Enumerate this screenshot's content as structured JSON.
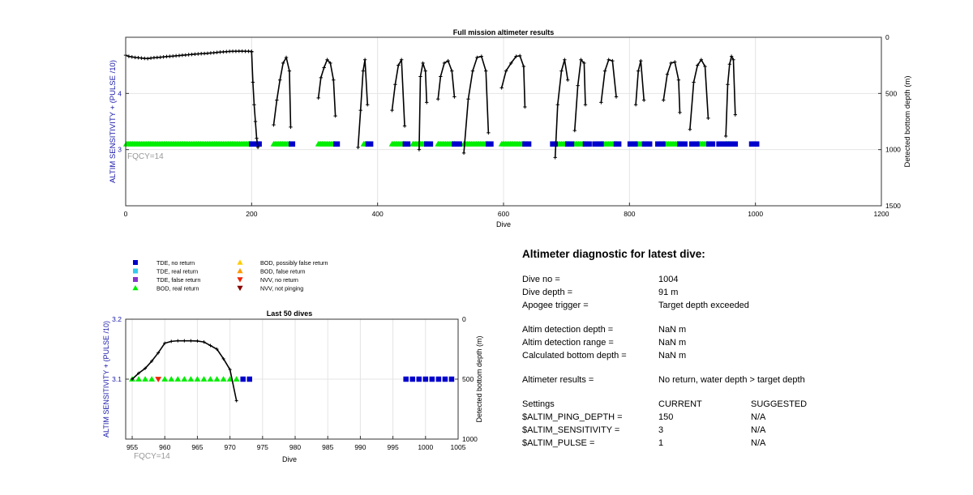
{
  "top_chart": {
    "title": "Full mission altimeter results",
    "xlabel": "Dive",
    "ylabel_left": "ALTIM SENSITIVITY + (PULSE /10)",
    "ylabel_right": "Detected bottom depth (m)",
    "xticks": [
      "0",
      "200",
      "400",
      "600",
      "800",
      "1000",
      "1200"
    ],
    "yticks_left": [
      "3",
      "4"
    ],
    "yticks_right": [
      "0",
      "500",
      "1000",
      "1500"
    ],
    "annotation": "FQCY=14",
    "colors": {
      "green": "#00ee00",
      "blue": "#0000cc",
      "line": "#000000"
    }
  },
  "legend": {
    "items": [
      {
        "label": "TDE, no return",
        "shape": "square",
        "color": "#0000cc"
      },
      {
        "label": "TDE, real return",
        "shape": "square",
        "color": "#33ccee"
      },
      {
        "label": "TDE, false return",
        "shape": "square",
        "color": "#8833cc"
      },
      {
        "label": "BOD, real return",
        "shape": "triangle-up",
        "color": "#00ee00"
      },
      {
        "label": "BOD, possibly false return",
        "shape": "triangle-up",
        "color": "#ffcc00"
      },
      {
        "label": "BOD, false return",
        "shape": "triangle-up",
        "color": "#ff9900"
      },
      {
        "label": "NVV, no return",
        "shape": "triangle-down",
        "color": "#ee2200"
      },
      {
        "label": "NVV, not pinging",
        "shape": "triangle-down",
        "color": "#880000"
      }
    ]
  },
  "bottom_chart": {
    "title": "Last 50 dives",
    "xlabel": "Dive",
    "ylabel_left": "ALTIM SENSITIVITY + (PULSE /10)",
    "ylabel_right": "Detected bottom depth (m)",
    "xticks": [
      "955",
      "960",
      "965",
      "970",
      "975",
      "980",
      "985",
      "990",
      "995",
      "1000",
      "1005"
    ],
    "yticks_left": [
      "3.1",
      "3.2"
    ],
    "yticks_right": [
      "0",
      "500",
      "1000"
    ],
    "annotation": "FQCY=14"
  },
  "chart_data": [
    {
      "type": "scatter",
      "title": "Full mission altimeter results",
      "xlabel": "Dive",
      "ylabel": "ALTIM SENSITIVITY + (PULSE /10)",
      "y2label": "Detected bottom depth (m)",
      "xlim": [
        0,
        1200
      ],
      "ylim": [
        2,
        5
      ],
      "y2lim": [
        1500,
        0
      ],
      "grid": true,
      "series": [
        {
          "name": "BOD, real return",
          "marker": "triangle-up",
          "color": "#00ee00",
          "y": 3.1,
          "ranges": [
            [
              1,
              200
            ],
            [
              235,
              262
            ],
            [
              306,
              333
            ],
            [
              378,
              384
            ],
            [
              423,
              443
            ],
            [
              456,
              478
            ],
            [
              496,
              522
            ],
            [
              537,
              576
            ],
            [
              597,
              634
            ],
            [
              682,
              702
            ],
            [
              713,
              730
            ],
            [
              755,
              779
            ],
            [
              810,
              823
            ],
            [
              854,
              880
            ],
            [
              908,
              925
            ],
            [
              953,
              960
            ]
          ]
        },
        {
          "name": "TDE, no return",
          "marker": "square",
          "color": "#0000cc",
          "y": 3.1,
          "ranges": [
            [
              200,
              212
            ],
            [
              263,
              265
            ],
            [
              334,
              336
            ],
            [
              385,
              389
            ],
            [
              444,
              449
            ],
            [
              478,
              485
            ],
            [
              522,
              530
            ],
            [
              576,
              581
            ],
            [
              634,
              640
            ],
            [
              678,
              682
            ],
            [
              702,
              708
            ],
            [
              730,
              737
            ],
            [
              745,
              755
            ],
            [
              779,
              784
            ],
            [
              801,
              809
            ],
            [
              824,
              832
            ],
            [
              845,
              853
            ],
            [
              880,
              888
            ],
            [
              899,
              907
            ],
            [
              926,
              932
            ],
            [
              942,
              952
            ],
            [
              960,
              968
            ],
            [
              994,
              1003
            ]
          ]
        },
        {
          "name": "Detected bottom depth (m)",
          "axis": "y2",
          "color": "#000000",
          "x": [
            0,
            5,
            10,
            15,
            20,
            25,
            30,
            35,
            40,
            45,
            50,
            55,
            60,
            65,
            70,
            75,
            80,
            85,
            90,
            95,
            100,
            105,
            110,
            115,
            120,
            125,
            130,
            135,
            140,
            145,
            150,
            155,
            160,
            165,
            170,
            175,
            180,
            185,
            190,
            195,
            200
          ],
          "y": [
            160,
            170,
            175,
            180,
            182,
            185,
            188,
            190,
            185,
            182,
            180,
            178,
            175,
            172,
            170,
            168,
            165,
            163,
            160,
            158,
            155,
            153,
            150,
            148,
            146,
            145,
            143,
            140,
            138,
            135,
            132,
            130,
            128,
            126,
            125,
            125,
            124,
            124,
            125,
            125,
            126
          ]
        },
        {
          "name": "Detected bottom depth (m)",
          "axis": "y2",
          "color": "#000000",
          "x": [
            200,
            202,
            204,
            206,
            208,
            210
          ],
          "y": [
            130,
            400,
            600,
            750,
            900,
            980
          ]
        },
        {
          "name": "Detected bottom depth (m)",
          "axis": "y2",
          "color": "#000000",
          "x": [
            235,
            240,
            245,
            250,
            255,
            260,
            262
          ],
          "y": [
            780,
            560,
            380,
            230,
            180,
            300,
            800
          ]
        },
        {
          "name": "Detected bottom depth (m)",
          "axis": "y2",
          "color": "#000000",
          "x": [
            306,
            310,
            315,
            320,
            325,
            330,
            333
          ],
          "y": [
            540,
            360,
            270,
            200,
            230,
            380,
            700
          ]
        },
        {
          "name": "Detected bottom depth (m)",
          "axis": "y2",
          "color": "#000000",
          "x": [
            369,
            373,
            377,
            380,
            384
          ],
          "y": [
            980,
            650,
            300,
            200,
            600
          ]
        },
        {
          "name": "Detected bottom depth (m)",
          "axis": "y2",
          "color": "#000000",
          "x": [
            423,
            428,
            433,
            438,
            443
          ],
          "y": [
            650,
            420,
            250,
            200,
            790
          ]
        },
        {
          "name": "Detected bottom depth (m)",
          "axis": "y2",
          "color": "#000000",
          "x": [
            466,
            468,
            472,
            476,
            478
          ],
          "y": [
            1000,
            350,
            230,
            300,
            580
          ]
        },
        {
          "name": "Detected bottom depth (m)",
          "axis": "y2",
          "color": "#000000",
          "x": [
            496,
            500,
            506,
            512,
            518,
            522
          ],
          "y": [
            550,
            350,
            230,
            210,
            300,
            530
          ]
        },
        {
          "name": "Detected bottom depth (m)",
          "axis": "y2",
          "color": "#000000",
          "x": [
            537,
            544,
            551,
            558,
            565,
            572,
            576
          ],
          "y": [
            1030,
            550,
            300,
            180,
            170,
            300,
            850
          ]
        },
        {
          "name": "Detected bottom depth (m)",
          "axis": "y2",
          "color": "#000000",
          "x": [
            597,
            604,
            612,
            620,
            626,
            632,
            634
          ],
          "y": [
            450,
            300,
            230,
            170,
            165,
            260,
            620
          ]
        },
        {
          "name": "Detected bottom depth (m)",
          "axis": "y2",
          "color": "#000000",
          "x": [
            682,
            686,
            692,
            697,
            702
          ],
          "y": [
            1070,
            600,
            300,
            200,
            380
          ]
        },
        {
          "name": "Detected bottom depth (m)",
          "axis": "y2",
          "color": "#000000",
          "x": [
            713,
            718,
            723,
            728,
            730
          ],
          "y": [
            830,
            430,
            200,
            230,
            600
          ]
        },
        {
          "name": "Detected bottom depth (m)",
          "axis": "y2",
          "color": "#000000",
          "x": [
            755,
            761,
            767,
            773,
            779
          ],
          "y": [
            580,
            300,
            200,
            210,
            530
          ]
        },
        {
          "name": "Detected bottom depth (m)",
          "axis": "y2",
          "color": "#000000",
          "x": [
            810,
            814,
            818,
            823
          ],
          "y": [
            600,
            300,
            210,
            560
          ]
        },
        {
          "name": "Detected bottom depth (m)",
          "axis": "y2",
          "color": "#000000",
          "x": [
            854,
            860,
            866,
            872,
            878,
            880
          ],
          "y": [
            560,
            330,
            230,
            220,
            380,
            670
          ]
        },
        {
          "name": "Detected bottom depth (m)",
          "axis": "y2",
          "color": "#000000",
          "x": [
            896,
            902,
            908,
            914,
            920,
            925
          ],
          "y": [
            820,
            400,
            250,
            200,
            260,
            720
          ]
        },
        {
          "name": "Detected bottom depth (m)",
          "axis": "y2",
          "color": "#000000",
          "x": [
            953,
            956,
            959,
            962,
            965,
            968
          ],
          "y": [
            880,
            420,
            240,
            170,
            200,
            690
          ]
        }
      ]
    },
    {
      "type": "scatter",
      "title": "Last 50 dives",
      "xlabel": "Dive",
      "ylabel": "ALTIM SENSITIVITY + (PULSE /10)",
      "y2label": "Detected bottom depth (m)",
      "xlim": [
        954,
        1005
      ],
      "ylim": [
        3,
        3.2
      ],
      "y2lim": [
        1000,
        0
      ],
      "grid": true,
      "series": [
        {
          "name": "BOD, real return",
          "marker": "triangle-up",
          "color": "#00ee00",
          "y": 3.1,
          "x": [
            955,
            956,
            957,
            958,
            960,
            961,
            962,
            963,
            964,
            965,
            966,
            967,
            968,
            969,
            970,
            971
          ]
        },
        {
          "name": "NVV, no return",
          "marker": "triangle-down",
          "color": "#ee2200",
          "y": 3.1,
          "x": [
            959
          ]
        },
        {
          "name": "TDE, no return",
          "marker": "square",
          "color": "#0000cc",
          "y": 3.1,
          "x": [
            972,
            973,
            997,
            998,
            999,
            1000,
            1001,
            1002,
            1003,
            1004
          ]
        },
        {
          "name": "Detected bottom depth (m)",
          "axis": "y2",
          "color": "#000000",
          "x": [
            955,
            956,
            957,
            958,
            959,
            960,
            961,
            962,
            963,
            964,
            965,
            966,
            967,
            968,
            969,
            970,
            971
          ],
          "y": [
            500,
            450,
            410,
            350,
            280,
            200,
            185,
            180,
            180,
            180,
            182,
            190,
            220,
            250,
            330,
            420,
            680
          ]
        }
      ]
    }
  ],
  "diagnostic": {
    "title": "Altimeter diagnostic for latest dive:",
    "dive_no_label": "Dive no =",
    "dive_no": "1004",
    "dive_depth_label": "Dive depth =",
    "dive_depth": "91 m",
    "apogee_label": "Apogee trigger =",
    "apogee": "Target depth exceeded",
    "altim_detect_depth_label": "Altim detection depth =",
    "altim_detect_depth": "NaN m",
    "altim_detect_range_label": "Altim detection range =",
    "altim_detect_range": "NaN m",
    "calc_bottom_label": "Calculated bottom depth =",
    "calc_bottom": "NaN m",
    "results_label": "Altimeter results =",
    "results": "No return, water depth > target depth",
    "settings_label": "Settings",
    "current_label": "CURRENT",
    "suggested_label": "SUGGESTED",
    "settings": [
      {
        "name": "$ALTIM_PING_DEPTH =",
        "current": "150",
        "suggested": "N/A"
      },
      {
        "name": "$ALTIM_SENSITIVITY =",
        "current": "3",
        "suggested": "N/A"
      },
      {
        "name": "$ALTIM_PULSE =",
        "current": "1",
        "suggested": "N/A"
      }
    ]
  }
}
